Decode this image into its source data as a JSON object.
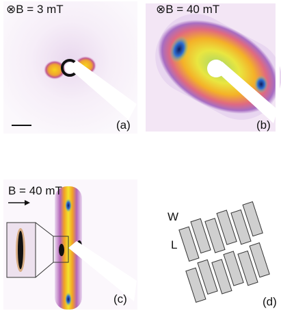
{
  "panels": [
    {
      "field": "⊗B = 3 mT",
      "tag": "(a)"
    },
    {
      "field": "⊗B = 40 mT",
      "tag": "(b)"
    },
    {
      "field": "B = 40 mT",
      "tag": "(c)"
    },
    {
      "tag": "(d)",
      "width_label": "W",
      "length_label": "L"
    }
  ]
}
